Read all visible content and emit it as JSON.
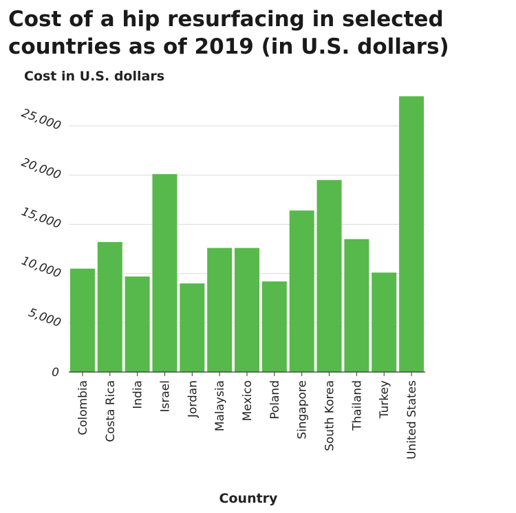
{
  "chart_data": {
    "type": "bar",
    "title": "Cost of a hip resurfacing in selected countries as of 2019 (in U.S. dollars)",
    "xlabel": "Country",
    "ylabel": "Cost in U.S. dollars",
    "categories": [
      "Colombia",
      "Costa Rica",
      "India",
      "Israel",
      "Jordan",
      "Malaysia",
      "Mexico",
      "Poland",
      "Singapore",
      "South Korea",
      "Thailand",
      "Turkey",
      "United States"
    ],
    "values": [
      10500,
      13200,
      9700,
      20100,
      9000,
      12600,
      12600,
      9200,
      16400,
      19500,
      13500,
      10100,
      28000
    ],
    "ylim": [
      0,
      28000
    ],
    "yticks": [
      0,
      5000,
      10000,
      15000,
      20000,
      25000
    ],
    "ytick_labels": [
      "0",
      "5,000",
      "10,000",
      "15,000",
      "20,000",
      "25,000"
    ],
    "bar_color": "#57b94b",
    "grid": true
  }
}
